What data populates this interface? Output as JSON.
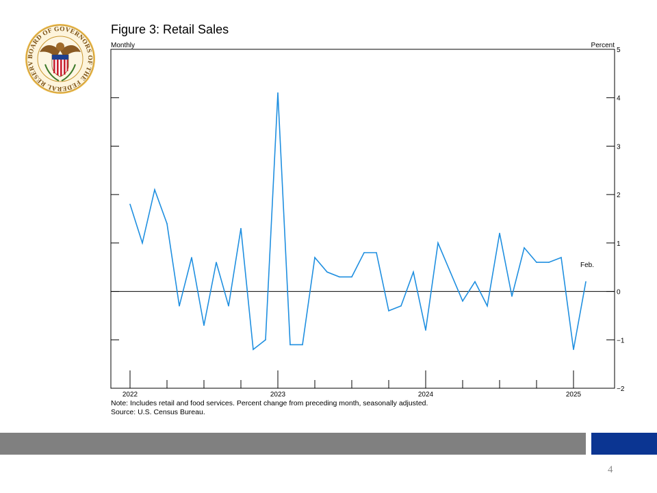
{
  "title": "Figure 3: Retail Sales",
  "seal": {
    "icon": "federal-reserve-seal-icon",
    "text": "BOARD OF GOVERNORS OF THE FEDERAL RESERVE SYSTEM"
  },
  "notes": {
    "note": "Note: Includes retail and food services. Percent change from preceding month, seasonally adjusted.",
    "source": "Source: U.S. Census Bureau."
  },
  "page_number": "4",
  "colors": {
    "line": "#1f8fe0",
    "footer_gray": "#808080",
    "footer_blue": "#0b3592",
    "page_number": "#8c8c8c"
  },
  "chart_data": {
    "type": "line",
    "title": "Figure 3: Retail Sales",
    "left_label": "Monthly",
    "right_label": "Percent",
    "ylim": [
      -2,
      5
    ],
    "y_ticks": [
      -2,
      -1,
      0,
      1,
      2,
      3,
      4,
      5
    ],
    "y_axis_side": "right",
    "zero_line": true,
    "x_start": "2022-01",
    "x_end": "2025-02",
    "x_tick_labels": [
      "2022",
      "2023",
      "2024",
      "2025"
    ],
    "annotation": "Feb.",
    "series": [
      {
        "x": [
          "2022-01",
          "2022-02",
          "2022-03",
          "2022-04",
          "2022-05",
          "2022-06",
          "2022-07",
          "2022-08",
          "2022-09",
          "2022-10",
          "2022-11",
          "2022-12",
          "2023-01",
          "2023-02",
          "2023-03",
          "2023-04",
          "2023-05",
          "2023-06",
          "2023-07",
          "2023-08",
          "2023-09",
          "2023-10",
          "2023-11",
          "2023-12",
          "2024-01",
          "2024-02",
          "2024-03",
          "2024-04",
          "2024-05",
          "2024-06",
          "2024-07",
          "2024-08",
          "2024-09",
          "2024-10",
          "2024-11",
          "2024-12",
          "2025-01",
          "2025-02"
        ],
        "values": [
          1.8,
          1.0,
          2.1,
          1.4,
          -0.3,
          0.7,
          -0.7,
          0.6,
          -0.3,
          1.3,
          -1.2,
          -1.0,
          4.1,
          -1.1,
          -1.1,
          0.7,
          0.4,
          0.3,
          0.3,
          0.8,
          0.8,
          -0.4,
          -0.3,
          0.4,
          -0.8,
          1.0,
          0.4,
          -0.2,
          0.2,
          -0.3,
          1.2,
          -0.1,
          0.9,
          0.6,
          0.6,
          0.7,
          -1.2,
          0.2
        ]
      }
    ]
  }
}
